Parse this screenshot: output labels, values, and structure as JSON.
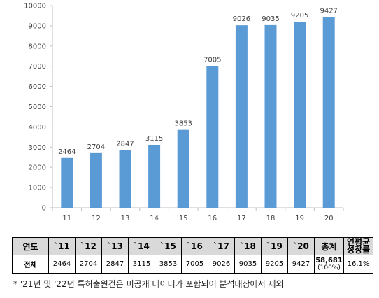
{
  "chart_data": {
    "type": "bar",
    "categories": [
      "11",
      "12",
      "13",
      "14",
      "15",
      "16",
      "17",
      "18",
      "19",
      "20"
    ],
    "values": [
      2464,
      2704,
      2847,
      3115,
      3853,
      7005,
      9026,
      9035,
      9205,
      9427
    ],
    "yticks": [
      "0",
      "1000",
      "2000",
      "3000",
      "4000",
      "5000",
      "6000",
      "7000",
      "8000",
      "9000",
      "10000"
    ],
    "ylim": [
      0,
      10000
    ],
    "grid": false,
    "color": "#5b9bd5"
  },
  "table": {
    "header": {
      "label": "연도",
      "years": [
        "`11",
        "`12",
        "`13",
        "`14",
        "`15",
        "`16",
        "`17",
        "`18",
        "`19",
        "`20"
      ],
      "total": "총계",
      "cagr": "연평균 성장률"
    },
    "row": {
      "label": "전체",
      "values": [
        "2464",
        "2704",
        "2847",
        "3115",
        "3853",
        "7005",
        "9026",
        "9035",
        "9205",
        "9427"
      ],
      "total": "58,681",
      "total_pct": "(100%)",
      "cagr": "16.1%"
    }
  },
  "note": "* '21년 및 '22년 특허출원건은 미공개 데이터가 포함되어 분석대상에서 제외"
}
